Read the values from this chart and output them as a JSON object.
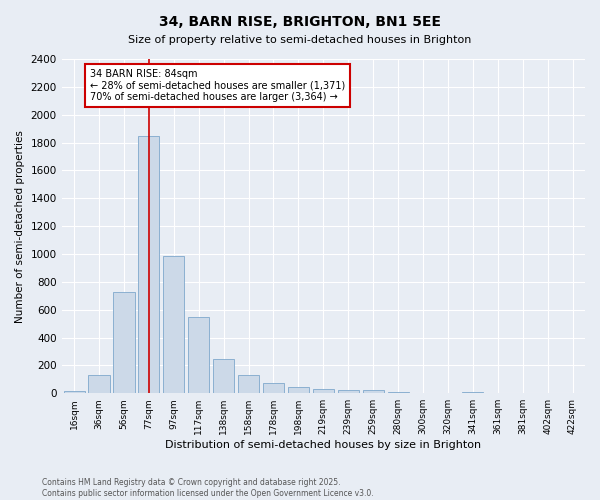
{
  "title": "34, BARN RISE, BRIGHTON, BN1 5EE",
  "subtitle": "Size of property relative to semi-detached houses in Brighton",
  "xlabel": "Distribution of semi-detached houses by size in Brighton",
  "ylabel": "Number of semi-detached properties",
  "bar_labels": [
    "16sqm",
    "36sqm",
    "56sqm",
    "77sqm",
    "97sqm",
    "117sqm",
    "138sqm",
    "158sqm",
    "178sqm",
    "198sqm",
    "219sqm",
    "239sqm",
    "259sqm",
    "280sqm",
    "300sqm",
    "320sqm",
    "341sqm",
    "361sqm",
    "381sqm",
    "402sqm",
    "422sqm"
  ],
  "bar_values": [
    15,
    130,
    730,
    1850,
    985,
    550,
    248,
    130,
    70,
    45,
    30,
    25,
    20,
    12,
    5,
    0,
    10,
    0,
    3,
    0,
    3
  ],
  "bar_color": "#ccd9e8",
  "bar_edge_color": "#7fa8cc",
  "vline_color": "#cc0000",
  "annotation_title": "34 BARN RISE: 84sqm",
  "annotation_line1": "← 28% of semi-detached houses are smaller (1,371)",
  "annotation_line2": "70% of semi-detached houses are larger (3,364) →",
  "ylim": [
    0,
    2400
  ],
  "yticks": [
    0,
    200,
    400,
    600,
    800,
    1000,
    1200,
    1400,
    1600,
    1800,
    2000,
    2200,
    2400
  ],
  "fig_bg_color": "#e8edf4",
  "plot_bg_color": "#e8edf4",
  "grid_color": "#ffffff",
  "footer_line1": "Contains HM Land Registry data © Crown copyright and database right 2025.",
  "footer_line2": "Contains public sector information licensed under the Open Government Licence v3.0."
}
